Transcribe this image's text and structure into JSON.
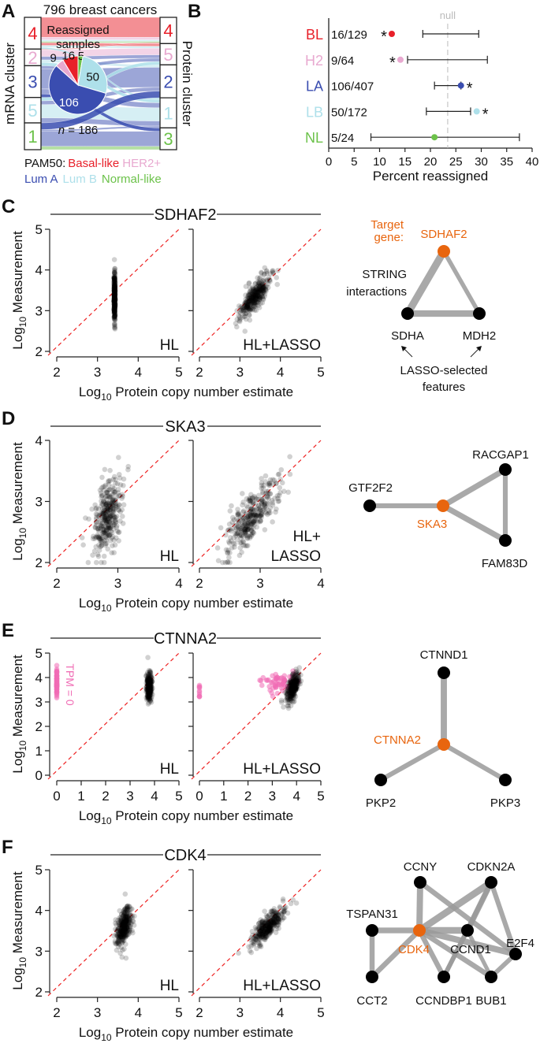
{
  "colors": {
    "BL": "#e8202a",
    "H2": "#e8a9d0",
    "LA": "#3a4db0",
    "LB": "#aee0ea",
    "NL": "#6cc24a",
    "target": "#e8650e",
    "edge": "#9a9a9a",
    "tpm0": "#f06cb4",
    "diag": "#ee2222",
    "null": "#bbbbbb"
  },
  "axes": {
    "log": "Log",
    "base": "10",
    "xlabel": " Protein copy number estimate",
    "ylabel": " Measurement"
  },
  "panel_a": {
    "letter": "A",
    "title": "796 breast cancers",
    "left_axis": "mRNA cluster",
    "right_axis": "Protein cluster",
    "mrna_clusters": [
      {
        "id": "4",
        "type": "BL"
      },
      {
        "id": "2",
        "type": "H2"
      },
      {
        "id": "3",
        "type": "LA"
      },
      {
        "id": "5",
        "type": "LB"
      },
      {
        "id": "1",
        "type": "NL"
      }
    ],
    "protein_clusters": [
      {
        "id": "4",
        "type": "BL"
      },
      {
        "id": "5",
        "type": "H2"
      },
      {
        "id": "2",
        "type": "LA"
      },
      {
        "id": "1",
        "type": "LB"
      },
      {
        "id": "3",
        "type": "NL"
      }
    ],
    "flows": [
      {
        "from": "4",
        "to": "4",
        "subtype": "BL",
        "n": 120
      },
      {
        "from": "4",
        "to": "4",
        "subtype": "H2",
        "n": 15
      },
      {
        "from": "4",
        "to": "4",
        "subtype": "LB",
        "n": 10
      },
      {
        "from": "4",
        "to": "4",
        "subtype": "NL",
        "n": 8
      },
      {
        "from": "4",
        "to": "5",
        "subtype": "BL",
        "n": 16
      },
      {
        "from": "4",
        "to": "5",
        "subtype": "LB",
        "n": 12
      },
      {
        "from": "4",
        "to": "1",
        "subtype": "LB",
        "n": 10
      },
      {
        "from": "2",
        "to": "4",
        "subtype": "BL",
        "n": 5
      },
      {
        "from": "2",
        "to": "5",
        "subtype": "H2",
        "n": 40
      },
      {
        "from": "2",
        "to": "5",
        "subtype": "LA",
        "n": 20
      },
      {
        "from": "2",
        "to": "2",
        "subtype": "LB",
        "n": 15
      },
      {
        "from": "2",
        "to": "1",
        "subtype": "LB",
        "n": 20
      },
      {
        "from": "3",
        "to": "5",
        "subtype": "LA",
        "n": 20
      },
      {
        "from": "3",
        "to": "2",
        "subtype": "LA",
        "n": 120
      },
      {
        "from": "3",
        "to": "1",
        "subtype": "LA",
        "n": 30
      },
      {
        "from": "3",
        "to": "3",
        "subtype": "LA",
        "n": 21
      },
      {
        "from": "5",
        "to": "5",
        "subtype": "LB",
        "n": 20
      },
      {
        "from": "5",
        "to": "2",
        "subtype": "LA",
        "n": 23
      },
      {
        "from": "5",
        "to": "1",
        "subtype": "LB",
        "n": 80
      },
      {
        "from": "5",
        "to": "1",
        "subtype": "LA",
        "n": 30
      },
      {
        "from": "1",
        "to": "2",
        "subtype": "LA",
        "n": 40
      },
      {
        "from": "1",
        "to": "1",
        "subtype": "LA",
        "n": 11
      },
      {
        "from": "1",
        "to": "3",
        "subtype": "LA",
        "n": 90
      },
      {
        "from": "1",
        "to": "3",
        "subtype": "NL",
        "n": 20
      }
    ],
    "legend": {
      "prefix": "PAM50:",
      "items": [
        {
          "label": "Basal-like",
          "type": "BL"
        },
        {
          "label": "HER2+",
          "type": "H2"
        },
        {
          "label": "Lum A",
          "type": "LA"
        },
        {
          "label": "Lum B",
          "type": "LB"
        },
        {
          "label": "Normal-like",
          "type": "NL"
        }
      ]
    }
  },
  "panel_b": {
    "letter": "B",
    "pie": {
      "title_lines": [
        "Reassigned",
        "samples"
      ],
      "n_label": "n",
      "n_value": " = 186",
      "slices": [
        {
          "type": "NL",
          "value": 5,
          "label": "5"
        },
        {
          "type": "LB",
          "value": 50,
          "label": "50"
        },
        {
          "type": "LA",
          "value": 106,
          "label": "106"
        },
        {
          "type": "H2",
          "value": 9,
          "label": "9"
        },
        {
          "type": "BL",
          "value": 16,
          "label": "16"
        }
      ]
    },
    "chart_data": {
      "type": "forest",
      "xlabel": "Percent reassigned",
      "xlim": [
        0,
        40
      ],
      "xticks": [
        "0",
        "5",
        "10",
        "15",
        "20",
        "25",
        "30",
        "35",
        "40"
      ],
      "null_label": "null",
      "null_value": 23.4,
      "rows": [
        {
          "label": "BL",
          "type": "BL",
          "count": "16/129",
          "pct": 12.4,
          "ci": [
            18.5,
            29.5
          ],
          "sig": "*",
          "sig_side": "left"
        },
        {
          "label": "H2",
          "type": "H2",
          "count": "9/64",
          "pct": 14.1,
          "ci": [
            15.5,
            31.2
          ],
          "sig": "*",
          "sig_side": "left"
        },
        {
          "label": "LA",
          "type": "LA",
          "count": "106/407",
          "pct": 26.0,
          "ci": [
            20.8,
            26.0
          ],
          "sig": "*",
          "sig_side": "right"
        },
        {
          "label": "LB",
          "type": "LB",
          "count": "50/172",
          "pct": 29.1,
          "ci": [
            19.2,
            27.9
          ],
          "sig": "*",
          "sig_side": "right"
        },
        {
          "label": "NL",
          "type": "NL",
          "count": "5/24",
          "pct": 20.8,
          "ci": [
            8.3,
            37.5
          ],
          "sig": "",
          "sig_side": "none"
        }
      ]
    }
  },
  "scatter_panels": [
    {
      "letter": "C",
      "gene": "SDHAF2",
      "range": [
        2,
        5
      ],
      "ticks": [
        "2",
        "3",
        "4",
        "5"
      ],
      "plots": [
        {
          "label_lines": [
            "HL"
          ],
          "groups": [
            {
              "color": "black",
              "n": 330,
              "x_mean": 3.42,
              "x_sd": 0.008,
              "y_mean": 3.35,
              "y_sd": 0.3,
              "corr": 0
            }
          ]
        },
        {
          "label_lines": [
            "HL+LASSO"
          ],
          "groups": [
            {
              "color": "black",
              "n": 330,
              "x_mean": 3.38,
              "x_sd": 0.2,
              "y_mean": 3.35,
              "y_sd": 0.28,
              "corr": 0.8
            }
          ]
        }
      ],
      "network": {
        "nodes": [
          {
            "id": "SDHAF2",
            "target": true
          },
          {
            "id": "SDHA",
            "target": false
          },
          {
            "id": "MDH2",
            "target": false
          }
        ],
        "edges": [
          {
            "from": "SDHAF2",
            "to": "SDHA",
            "weight": 0.9
          },
          {
            "from": "SDHA",
            "to": "MDH2",
            "weight": 0.75
          },
          {
            "from": "SDHAF2",
            "to": "MDH2",
            "weight": 0.35
          }
        ],
        "annotations": {
          "target_lines": [
            "Target",
            "gene:"
          ],
          "string_lines": [
            "STRING",
            "interactions"
          ],
          "lasso_lines": [
            "LASSO-selected",
            "features"
          ]
        }
      }
    },
    {
      "letter": "D",
      "gene": "SKA3",
      "range": [
        2,
        4
      ],
      "ticks": [
        "2",
        "3",
        "4"
      ],
      "plots": [
        {
          "label_lines": [
            "HL"
          ],
          "groups": [
            {
              "color": "black",
              "n": 330,
              "x_mean": 2.83,
              "x_sd": 0.12,
              "y_mean": 2.75,
              "y_sd": 0.3,
              "corr": 0.45
            }
          ]
        },
        {
          "label_lines": [
            "HL+",
            "LASSO"
          ],
          "groups": [
            {
              "color": "black",
              "n": 330,
              "x_mean": 2.86,
              "x_sd": 0.22,
              "y_mean": 2.75,
              "y_sd": 0.3,
              "corr": 0.78
            }
          ]
        }
      ],
      "network": {
        "nodes": [
          {
            "id": "SKA3",
            "target": true
          },
          {
            "id": "GTF2F2",
            "target": false
          },
          {
            "id": "RACGAP1",
            "target": false
          },
          {
            "id": "FAM83D",
            "target": false
          }
        ],
        "edges": [
          {
            "from": "SKA3",
            "to": "GTF2F2",
            "weight": 0.45
          },
          {
            "from": "SKA3",
            "to": "RACGAP1",
            "weight": 0.6
          },
          {
            "from": "SKA3",
            "to": "FAM83D",
            "weight": 0.6
          },
          {
            "from": "RACGAP1",
            "to": "FAM83D",
            "weight": 0.45
          }
        ]
      }
    },
    {
      "letter": "E",
      "gene": "CTNNA2",
      "range": [
        0,
        5
      ],
      "ticks": [
        "0",
        "1",
        "2",
        "3",
        "4",
        "5"
      ],
      "tpm_label": "TPM = 0",
      "plots": [
        {
          "label_lines": [
            "HL"
          ],
          "groups": [
            {
              "color": "pink",
              "n": 60,
              "x_mean": 0,
              "x_sd": 0,
              "y_mean": 3.75,
              "y_sd": 0.3,
              "corr": 0
            },
            {
              "color": "black",
              "n": 260,
              "x_mean": 3.78,
              "x_sd": 0.05,
              "y_mean": 3.6,
              "y_sd": 0.3,
              "corr": 0
            }
          ]
        },
        {
          "label_lines": [
            "HL+LASSO"
          ],
          "groups": [
            {
              "color": "pink",
              "n": 10,
              "x_mean": 0,
              "x_sd": 0,
              "y_mean": 3.4,
              "y_sd": 0.2,
              "corr": 0
            },
            {
              "color": "pink",
              "n": 60,
              "x_mean": 3.3,
              "x_sd": 0.35,
              "y_mean": 3.75,
              "y_sd": 0.2,
              "corr": 0.2
            },
            {
              "color": "black",
              "n": 260,
              "x_mean": 3.85,
              "x_sd": 0.13,
              "y_mean": 3.6,
              "y_sd": 0.3,
              "corr": 0.6
            }
          ]
        }
      ],
      "network": {
        "nodes": [
          {
            "id": "CTNNA2",
            "target": true
          },
          {
            "id": "CTNND1",
            "target": false
          },
          {
            "id": "PKP2",
            "target": false
          },
          {
            "id": "PKP3",
            "target": false
          }
        ],
        "edges": [
          {
            "from": "CTNNA2",
            "to": "CTNND1",
            "weight": 0.7
          },
          {
            "from": "CTNNA2",
            "to": "PKP2",
            "weight": 0.45
          },
          {
            "from": "CTNNA2",
            "to": "PKP3",
            "weight": 0.45
          }
        ]
      }
    },
    {
      "letter": "F",
      "gene": "CDK4",
      "range": [
        2,
        5
      ],
      "ticks": [
        "2",
        "3",
        "4",
        "5"
      ],
      "plots": [
        {
          "label_lines": [
            "HL"
          ],
          "groups": [
            {
              "color": "black",
              "n": 330,
              "x_mean": 3.66,
              "x_sd": 0.1,
              "y_mean": 3.62,
              "y_sd": 0.25,
              "corr": 0.4
            }
          ]
        },
        {
          "label_lines": [
            "HL+LASSO"
          ],
          "groups": [
            {
              "color": "black",
              "n": 330,
              "x_mean": 3.7,
              "x_sd": 0.2,
              "y_mean": 3.62,
              "y_sd": 0.23,
              "corr": 0.82
            }
          ]
        }
      ],
      "network": {
        "nodes": [
          {
            "id": "CDK4",
            "target": true
          },
          {
            "id": "CCNY",
            "target": false
          },
          {
            "id": "CDKN2A",
            "target": false
          },
          {
            "id": "TSPAN31",
            "target": false
          },
          {
            "id": "CCND1",
            "target": false
          },
          {
            "id": "E2F4",
            "target": false
          },
          {
            "id": "CCT2",
            "target": false
          },
          {
            "id": "CCNDBP1",
            "target": false
          },
          {
            "id": "BUB1",
            "target": false
          }
        ],
        "edges": [
          {
            "from": "CDK4",
            "to": "CCNY",
            "weight": 0.7
          },
          {
            "from": "CDK4",
            "to": "CDKN2A",
            "weight": 0.8
          },
          {
            "from": "CDK4",
            "to": "TSPAN31",
            "weight": 0.6
          },
          {
            "from": "CDK4",
            "to": "CCT2",
            "weight": 0.5
          },
          {
            "from": "CDK4",
            "to": "CCND1",
            "weight": 0.8
          },
          {
            "from": "CDK4",
            "to": "E2F4",
            "weight": 0.7
          },
          {
            "from": "CDK4",
            "to": "CCNDBP1",
            "weight": 0.5
          },
          {
            "from": "CDK4",
            "to": "BUB1",
            "weight": 0.5
          },
          {
            "from": "TSPAN31",
            "to": "CCT2",
            "weight": 0.5
          },
          {
            "from": "CCNY",
            "to": "E2F4",
            "weight": 0.5
          },
          {
            "from": "CDKN2A",
            "to": "CCND1",
            "weight": 0.6
          },
          {
            "from": "CDKN2A",
            "to": "E2F4",
            "weight": 0.45
          },
          {
            "from": "CDKN2A",
            "to": "CCNDBP1",
            "weight": 0.4
          },
          {
            "from": "CCND1",
            "to": "CCNDBP1",
            "weight": 0.4
          },
          {
            "from": "CCND1",
            "to": "BUB1",
            "weight": 0.3
          },
          {
            "from": "E2F4",
            "to": "BUB1",
            "weight": 0.4
          }
        ]
      }
    }
  ]
}
